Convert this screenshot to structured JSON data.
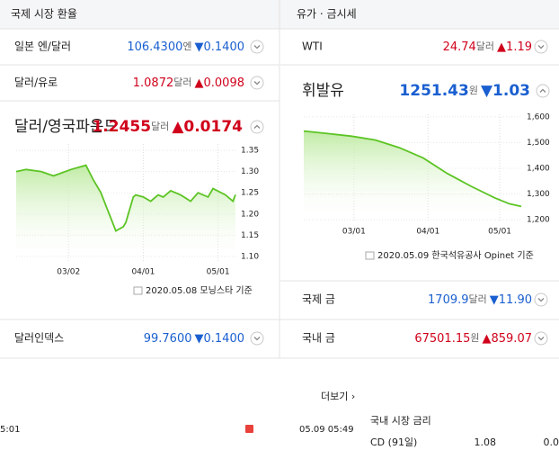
{
  "left": {
    "header": "국제 시장 환율",
    "rows": [
      {
        "name": "일본 엔/달러",
        "value": "106.4300",
        "unit": "엔",
        "change": "▼0.1400",
        "color": "#1a5fd0"
      },
      {
        "name": "달러/유로",
        "value": "1.0872",
        "unit": "달러",
        "change": "▲0.0098",
        "color": "#d0021b"
      }
    ],
    "featured": {
      "name": "달러/영국파운드",
      "value": "1.2455",
      "unit": "달러",
      "change": "▲0.0174",
      "color": "#d0021b",
      "chart": {
        "type": "line",
        "color": "#5cc424",
        "x": [
          0,
          4,
          10,
          15,
          22,
          28,
          31,
          34,
          36,
          38,
          40,
          43,
          44,
          47,
          48,
          51,
          54,
          57,
          59,
          62,
          66,
          70,
          73,
          77,
          79,
          84,
          87,
          88
        ],
        "values": [
          1.3,
          1.305,
          1.3,
          1.29,
          1.305,
          1.315,
          1.28,
          1.25,
          1.22,
          1.19,
          1.16,
          1.17,
          1.18,
          1.24,
          1.245,
          1.24,
          1.23,
          1.245,
          1.24,
          1.255,
          1.245,
          1.23,
          1.25,
          1.24,
          1.26,
          1.245,
          1.23,
          1.2455
        ],
        "xlim": [
          0,
          88
        ],
        "ylim": [
          1.085,
          1.365
        ],
        "xticks": [
          {
            "value": 21,
            "label": "03/02"
          },
          {
            "value": 51,
            "label": "04/01"
          },
          {
            "value": 81,
            "label": "05/01"
          }
        ],
        "yticks": [
          {
            "value": 1.35,
            "label": "1.35"
          },
          {
            "value": 1.3,
            "label": "1.30"
          },
          {
            "value": 1.25,
            "label": "1.25"
          },
          {
            "value": 1.2,
            "label": "1.20"
          },
          {
            "value": 1.15,
            "label": "1.15"
          },
          {
            "value": 1.1,
            "label": "1.10"
          }
        ]
      },
      "source": "2020.05.08 모닝스타 기준"
    },
    "rows_after": [
      {
        "name": "달러인덱스",
        "value": "99.7600",
        "unit": "",
        "change": "▼0.1400",
        "color": "#1a5fd0"
      }
    ]
  },
  "right": {
    "header": "유가 · 금시세",
    "rows": [
      {
        "name": "WTI",
        "value": "24.74",
        "unit": "달러",
        "change": "▲1.19",
        "color": "#d0021b"
      }
    ],
    "featured": {
      "name": "휘발유",
      "value": "1251.43",
      "unit": "원",
      "change": "▼1.03",
      "color": "#1a5fd0",
      "chart": {
        "type": "line",
        "color": "#5cc424",
        "x": [
          0,
          10,
          20,
          30,
          40,
          50,
          60,
          70,
          80,
          86,
          91
        ],
        "values": [
          1545,
          1535,
          1525,
          1510,
          1480,
          1440,
          1380,
          1330,
          1285,
          1262,
          1251.43
        ],
        "xlim": [
          0,
          91
        ],
        "ylim": [
          1190,
          1610
        ],
        "xticks": [
          {
            "value": 21,
            "label": "03/01"
          },
          {
            "value": 52,
            "label": "04/01"
          },
          {
            "value": 82,
            "label": "05/01"
          }
        ],
        "yticks": [
          {
            "value": 1600,
            "label": "1,600"
          },
          {
            "value": 1500,
            "label": "1,500"
          },
          {
            "value": 1400,
            "label": "1,400"
          },
          {
            "value": 1300,
            "label": "1,300"
          },
          {
            "value": 1200,
            "label": "1,200"
          }
        ]
      },
      "source": "2020.05.09 한국석유공사 Opinet 기준"
    },
    "rows_after": [
      {
        "name": "국제 금",
        "value": "1709.9",
        "unit": "달러",
        "change": "▼11.90",
        "color": "#1a5fd0"
      },
      {
        "name": "국내 금",
        "value": "67501.15",
        "unit": "원",
        "change": "▲859.07",
        "color": "#d0021b"
      }
    ]
  },
  "bottom": {
    "more": "더보기 ›",
    "news_times": [
      "5:01",
      "05.09 05:49"
    ],
    "rates_title": "국내 시장 금리",
    "rates_row": [
      "CD (91일)",
      "1.08",
      "0.0"
    ]
  }
}
